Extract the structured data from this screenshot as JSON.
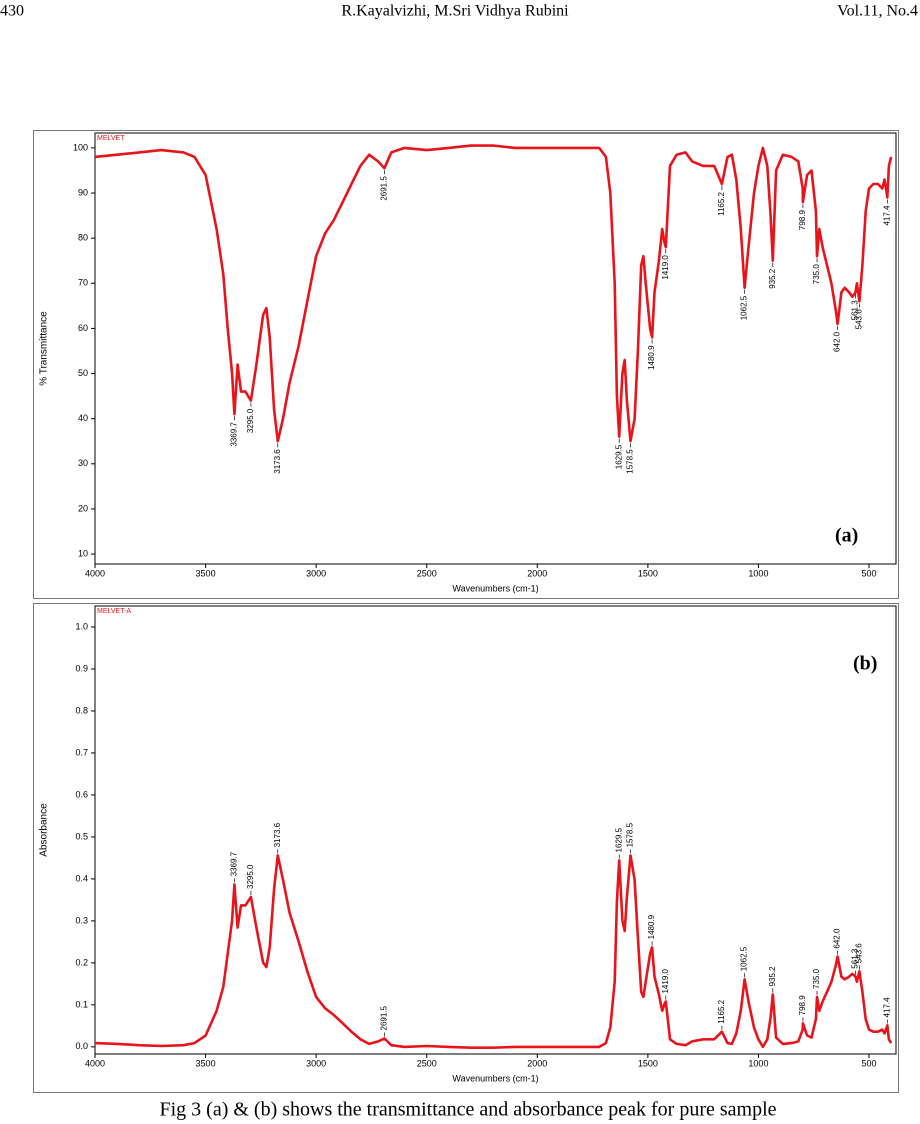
{
  "header": {
    "page": "430",
    "authors": "R.Kayalvizhi, M.Sri Vidhya Rubini",
    "volume": "Vol.11, No.4"
  },
  "caption": "Fig 3 (a) & (b) shows the transmittance and absorbance peak for pure sample",
  "chart_data": [
    {
      "type": "line",
      "sample_name": "MELVET",
      "panel_label": "(a)",
      "x_label": "Wavenumbers (cm-1)",
      "y_label": "% Transmittance",
      "color": "#e8141c",
      "xlim": [
        4000,
        378
      ],
      "ylim": [
        7.8,
        103.3
      ],
      "xticks": [
        4000,
        3500,
        3000,
        2500,
        2000,
        1500,
        1000,
        500
      ],
      "yticks": [
        10,
        20,
        30,
        40,
        50,
        60,
        70,
        80,
        90,
        100
      ],
      "x": [
        4000,
        3900,
        3800,
        3700,
        3600,
        3550,
        3500,
        3450,
        3420,
        3400,
        3380,
        3369.7,
        3355,
        3340,
        3320,
        3295,
        3270,
        3240,
        3225,
        3210,
        3190,
        3173.6,
        3150,
        3120,
        3080,
        3040,
        3000,
        2960,
        2920,
        2880,
        2840,
        2800,
        2760,
        2720,
        2691.5,
        2660,
        2600,
        2500,
        2400,
        2300,
        2200,
        2100,
        2000,
        1900,
        1800,
        1720,
        1690,
        1670,
        1650,
        1640,
        1629.5,
        1615,
        1605,
        1595,
        1578.5,
        1560,
        1545,
        1530,
        1520,
        1510,
        1490,
        1480.9,
        1470,
        1450,
        1435,
        1425,
        1419,
        1400,
        1370,
        1330,
        1300,
        1250,
        1200,
        1165.2,
        1140,
        1120,
        1100,
        1080,
        1062.5,
        1045,
        1020,
        1000,
        980,
        960,
        945,
        935.2,
        920,
        890,
        850,
        820,
        800,
        798.9,
        780,
        760,
        740,
        735,
        725,
        710,
        690,
        670,
        650,
        642,
        625,
        610,
        590,
        575,
        561.3,
        555,
        543.6,
        530,
        515,
        500,
        480,
        460,
        440,
        430,
        420,
        417.4,
        410,
        400
      ],
      "values": [
        98,
        98.5,
        99,
        99.5,
        99,
        98,
        94,
        82,
        72,
        60,
        50,
        41,
        52,
        46,
        46,
        44,
        52,
        63,
        64.5,
        58,
        42,
        35,
        40,
        48,
        56,
        66,
        76,
        81,
        84,
        88,
        92,
        96,
        98.5,
        97,
        95.5,
        99,
        100,
        99.5,
        100,
        100.5,
        100.5,
        100,
        100,
        100,
        100,
        100,
        98,
        90,
        70,
        45,
        36,
        50,
        53,
        44,
        35,
        40,
        55,
        74,
        76,
        70,
        60,
        58,
        68,
        75,
        82,
        79,
        78,
        96,
        98.5,
        99,
        97,
        96,
        96,
        92,
        98,
        98.5,
        93,
        82,
        69,
        78,
        90,
        96,
        100,
        96,
        85,
        75,
        95,
        98.5,
        98,
        97,
        91,
        88,
        94,
        95,
        86,
        76,
        82,
        78,
        74,
        70,
        64,
        61,
        68,
        69,
        68,
        67,
        68,
        70,
        66,
        74,
        86,
        91,
        92,
        92,
        91,
        93,
        90,
        89,
        96,
        98
      ],
      "peaks": [
        {
          "x": 3369.7,
          "label": "3369.7"
        },
        {
          "x": 3295.0,
          "label": "3295.0"
        },
        {
          "x": 3173.6,
          "label": "3173.6"
        },
        {
          "x": 2691.5,
          "label": "2691.5"
        },
        {
          "x": 1629.5,
          "label": "1629.5"
        },
        {
          "x": 1578.5,
          "label": "1578.5"
        },
        {
          "x": 1480.9,
          "label": "1480.9"
        },
        {
          "x": 1419.0,
          "label": "1419.0"
        },
        {
          "x": 1165.2,
          "label": "1165.2"
        },
        {
          "x": 1062.5,
          "label": "1062.5"
        },
        {
          "x": 935.2,
          "label": "935.2"
        },
        {
          "x": 798.9,
          "label": "798.9"
        },
        {
          "x": 735.0,
          "label": "735.0"
        },
        {
          "x": 642.0,
          "label": "642.0"
        },
        {
          "x": 561.3,
          "label": "561.3"
        },
        {
          "x": 543.6,
          "label": "543.6"
        },
        {
          "x": 417.4,
          "label": "417.4"
        }
      ]
    },
    {
      "type": "line",
      "sample_name": "MELVET-A",
      "panel_label": "(b)",
      "x_label": "Wavenumbers (cm-1)",
      "y_label": "Absorbance",
      "color": "#e8141c",
      "xlim": [
        4000,
        378
      ],
      "ylim": [
        -0.017,
        1.05
      ],
      "xticks": [
        4000,
        3500,
        3000,
        2500,
        2000,
        1500,
        1000,
        500
      ],
      "yticks": [
        {
          "value": 0,
          "label": "0.0"
        },
        0.1,
        0.2,
        0.3,
        0.4,
        0.5,
        0.6,
        0.7,
        0.8,
        0.9,
        {
          "value": 1,
          "label": "1.0"
        }
      ],
      "x": [
        4000,
        3900,
        3800,
        3700,
        3600,
        3550,
        3500,
        3450,
        3420,
        3400,
        3380,
        3369.7,
        3355,
        3340,
        3320,
        3295,
        3270,
        3240,
        3225,
        3210,
        3190,
        3173.6,
        3150,
        3120,
        3080,
        3040,
        3000,
        2960,
        2920,
        2880,
        2840,
        2800,
        2760,
        2720,
        2691.5,
        2660,
        2600,
        2500,
        2400,
        2300,
        2200,
        2100,
        2000,
        1900,
        1800,
        1720,
        1690,
        1670,
        1650,
        1640,
        1629.5,
        1615,
        1605,
        1595,
        1578.5,
        1560,
        1545,
        1530,
        1520,
        1510,
        1490,
        1480.9,
        1470,
        1450,
        1435,
        1425,
        1419,
        1400,
        1370,
        1330,
        1300,
        1250,
        1200,
        1165.2,
        1140,
        1120,
        1100,
        1080,
        1062.5,
        1045,
        1020,
        1000,
        980,
        960,
        945,
        935.2,
        920,
        890,
        850,
        820,
        800,
        798.9,
        780,
        760,
        740,
        735,
        725,
        710,
        690,
        670,
        650,
        642,
        625,
        610,
        590,
        575,
        561.3,
        555,
        543.6,
        530,
        515,
        500,
        480,
        460,
        440,
        430,
        420,
        417.4,
        410,
        400
      ],
      "values": [
        0.009,
        0.007,
        0.004,
        0.002,
        0.004,
        0.009,
        0.027,
        0.086,
        0.143,
        0.222,
        0.301,
        0.387,
        0.284,
        0.337,
        0.337,
        0.357,
        0.284,
        0.201,
        0.19,
        0.237,
        0.377,
        0.456,
        0.398,
        0.319,
        0.252,
        0.18,
        0.119,
        0.092,
        0.076,
        0.056,
        0.036,
        0.018,
        0.007,
        0.013,
        0.02,
        0.004,
        0,
        0.002,
        0,
        -0.002,
        -0.002,
        0,
        0,
        0,
        0,
        0,
        0.009,
        0.046,
        0.155,
        0.347,
        0.444,
        0.301,
        0.276,
        0.357,
        0.456,
        0.398,
        0.26,
        0.131,
        0.119,
        0.155,
        0.222,
        0.237,
        0.167,
        0.125,
        0.086,
        0.102,
        0.108,
        0.018,
        0.007,
        0.004,
        0.013,
        0.018,
        0.018,
        0.036,
        0.009,
        0.007,
        0.032,
        0.086,
        0.161,
        0.108,
        0.046,
        0.018,
        0,
        0.018,
        0.071,
        0.125,
        0.022,
        0.007,
        0.009,
        0.013,
        0.041,
        0.056,
        0.027,
        0.022,
        0.066,
        0.119,
        0.086,
        0.108,
        0.131,
        0.155,
        0.194,
        0.215,
        0.167,
        0.161,
        0.167,
        0.174,
        0.167,
        0.155,
        0.18,
        0.131,
        0.066,
        0.041,
        0.036,
        0.036,
        0.041,
        0.032,
        0.046,
        0.051,
        0.018,
        0.009
      ],
      "peaks": [
        {
          "x": 3369.7,
          "label": "3369.7"
        },
        {
          "x": 3295.0,
          "label": "3295.0"
        },
        {
          "x": 3173.6,
          "label": "3173.6"
        },
        {
          "x": 2691.5,
          "label": "2691.5"
        },
        {
          "x": 1629.5,
          "label": "1629.5"
        },
        {
          "x": 1578.5,
          "label": "1578.5"
        },
        {
          "x": 1480.9,
          "label": "1480.9"
        },
        {
          "x": 1419.0,
          "label": "1419.0"
        },
        {
          "x": 1165.2,
          "label": "1165.2"
        },
        {
          "x": 1062.5,
          "label": "1062.5"
        },
        {
          "x": 935.2,
          "label": "935.2"
        },
        {
          "x": 798.9,
          "label": "798.9"
        },
        {
          "x": 735.0,
          "label": "735.0"
        },
        {
          "x": 642.0,
          "label": "642.0"
        },
        {
          "x": 561.3,
          "label": "561.3"
        },
        {
          "x": 543.6,
          "label": "543.6"
        },
        {
          "x": 417.4,
          "label": "417.4"
        }
      ]
    }
  ]
}
